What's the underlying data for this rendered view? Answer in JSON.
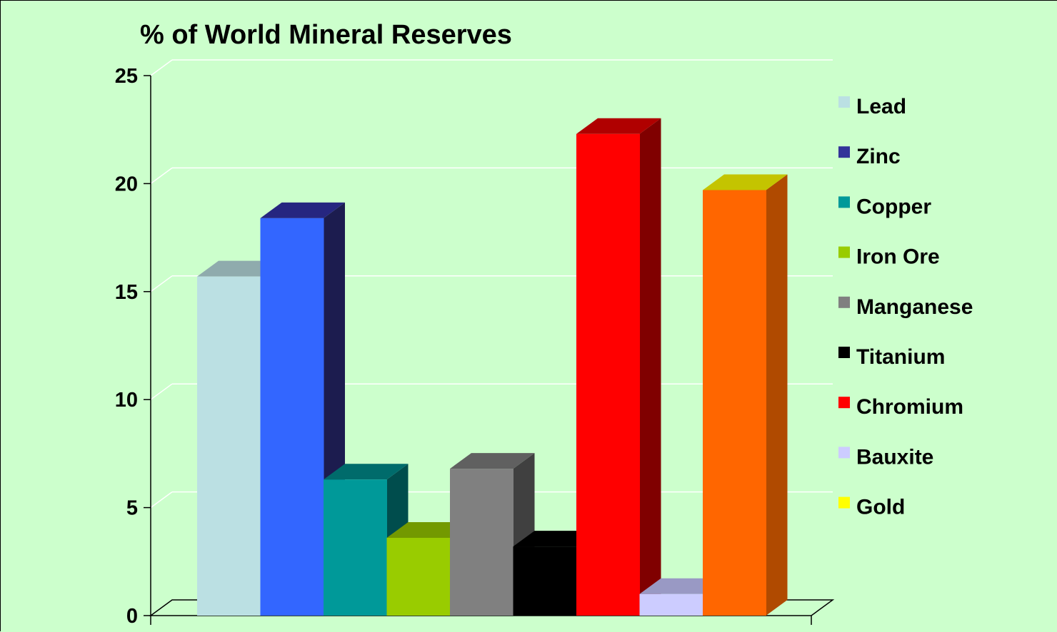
{
  "chart_data": {
    "type": "bar",
    "title": "% of World Mineral Reserves",
    "categories": [
      "Lead",
      "Zinc",
      "Copper",
      "Iron Ore",
      "Manganese",
      "Titanium",
      "Chromium",
      "Bauxite",
      "Gold"
    ],
    "values": [
      15.7,
      18.4,
      6.3,
      3.6,
      6.8,
      3.2,
      22.3,
      1.0,
      19.7
    ],
    "ylim": [
      0,
      25
    ],
    "yticks": [
      0,
      5,
      10,
      15,
      20,
      25
    ],
    "grid": true,
    "three_d": true,
    "legend_position": "right",
    "legend": [
      {
        "label": "Lead",
        "color": "#bbe0e3"
      },
      {
        "label": "Zinc",
        "color": "#333399"
      },
      {
        "label": "Copper",
        "color": "#009999"
      },
      {
        "label": "Iron Ore",
        "color": "#99cc00"
      },
      {
        "label": "Manganese",
        "color": "#808080"
      },
      {
        "label": "Titanium",
        "color": "#000000"
      },
      {
        "label": "Chromium",
        "color": "#ff0000"
      },
      {
        "label": "Bauxite",
        "color": "#ccccff"
      },
      {
        "label": "Gold",
        "color": "#ffff00"
      }
    ],
    "bar_colors": [
      {
        "front": "#bbe0e3",
        "top": "#8fabad",
        "side": "#7f9a9c"
      },
      {
        "front": "#3366ff",
        "top": "#262680",
        "side": "#1c1c4f"
      },
      {
        "front": "#009999",
        "top": "#006b6b",
        "side": "#004d4d"
      },
      {
        "front": "#99cc00",
        "top": "#739900",
        "side": "#5c7a00"
      },
      {
        "front": "#808080",
        "top": "#606060",
        "side": "#404040"
      },
      {
        "front": "#000000",
        "top": "#000000",
        "side": "#000000"
      },
      {
        "front": "#ff0000",
        "top": "#b00000",
        "side": "#800000"
      },
      {
        "front": "#ccccff",
        "top": "#9999c4",
        "side": "#8080a8"
      },
      {
        "front": "#ff6600",
        "top": "#c4c400",
        "side": "#b04a00"
      }
    ],
    "grid_color": "#ffffff",
    "axis_color": "#000000"
  }
}
